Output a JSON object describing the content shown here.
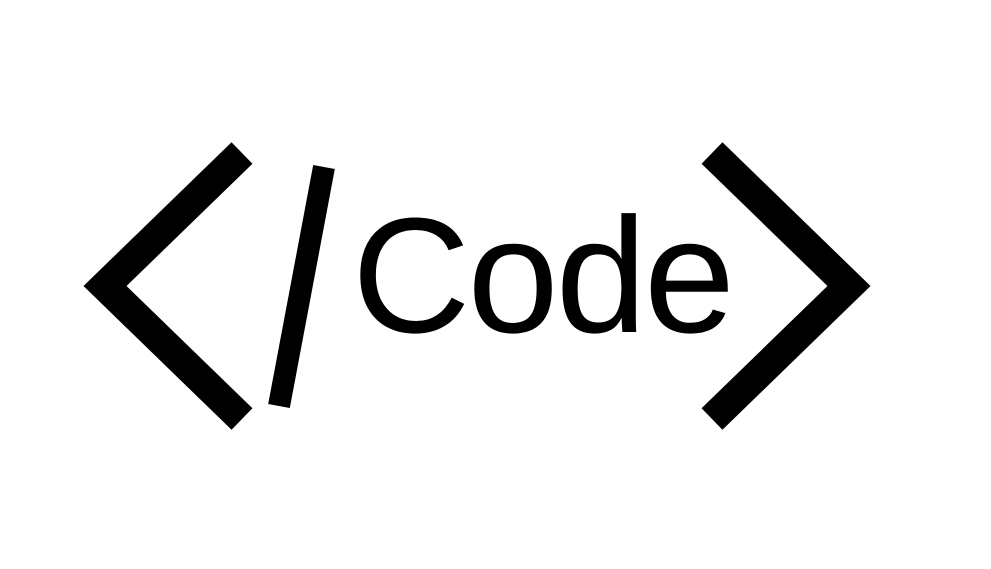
{
  "logo": {
    "text": "Code",
    "color": "#000000",
    "background": "#ffffff",
    "icons": [
      "left-angle-bracket-icon",
      "slash-icon",
      "right-angle-bracket-icon"
    ]
  }
}
